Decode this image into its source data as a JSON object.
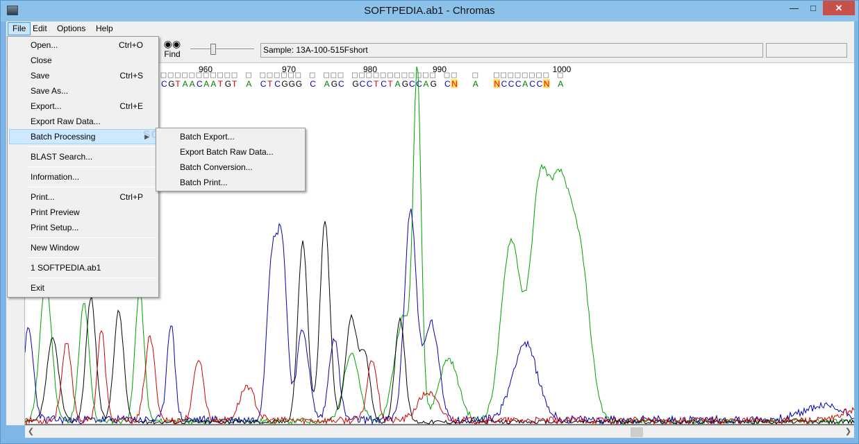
{
  "window": {
    "title": "SOFTPEDIA.ab1 - Chromas"
  },
  "menubar": [
    "File",
    "Edit",
    "Options",
    "Help"
  ],
  "toolbar": {
    "find_label": "Find",
    "sample_text": "Sample: 13A-100-515Fshort"
  },
  "file_menu": {
    "items": [
      {
        "label": "Open...",
        "shortcut": "Ctrl+O"
      },
      {
        "label": "Close",
        "shortcut": ""
      },
      {
        "label": "Save",
        "shortcut": "Ctrl+S"
      },
      {
        "label": "Save As...",
        "shortcut": ""
      },
      {
        "label": "Export...",
        "shortcut": "Ctrl+E"
      },
      {
        "label": "Export Raw Data...",
        "shortcut": ""
      },
      {
        "label": "Batch Processing",
        "shortcut": ""
      },
      {
        "label": "BLAST Search...",
        "shortcut": ""
      },
      {
        "label": "Information...",
        "shortcut": ""
      },
      {
        "label": "Print...",
        "shortcut": "Ctrl+P"
      },
      {
        "label": "Print Preview",
        "shortcut": ""
      },
      {
        "label": "Print Setup...",
        "shortcut": ""
      },
      {
        "label": "New Window",
        "shortcut": ""
      },
      {
        "label": "1 SOFTPEDIA.ab1",
        "shortcut": ""
      },
      {
        "label": "Exit",
        "shortcut": ""
      }
    ]
  },
  "batch_submenu": [
    "Batch Export...",
    "Export Batch Raw Data...",
    "Batch Conversion...",
    "Batch Print..."
  ],
  "watermark": "SOFTPEDIA",
  "trace": {
    "positions": [
      "960",
      "970",
      "980",
      "990",
      "1000"
    ],
    "bases": "CGTAACAATGT A CTCGGG C AGC GCCTCTAGCCAG CN  A  NCCCACCN A",
    "colors": {
      "A": "#008000",
      "C": "#0000c0",
      "G": "#000000",
      "T": "#d00000",
      "N": "#ff0000",
      "highlight": "#ffe066"
    }
  }
}
